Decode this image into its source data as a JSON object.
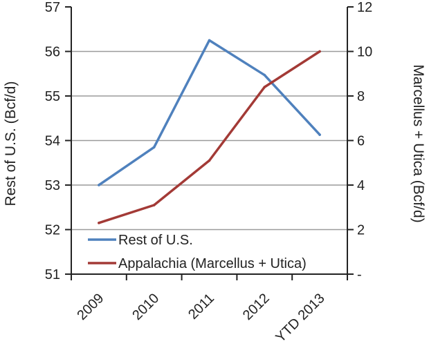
{
  "chart_data": {
    "type": "line",
    "categories": [
      "2009",
      "2010",
      "2011",
      "2012",
      "YTD 2013"
    ],
    "series": [
      {
        "name": "Rest of U.S.",
        "axis": "left",
        "color": "#4f81bd",
        "values": [
          53.0,
          53.85,
          56.25,
          55.47,
          54.13
        ]
      },
      {
        "name": "Appalachia (Marcellus + Utica)",
        "axis": "right",
        "color": "#a33a36",
        "values": [
          2.3,
          3.1,
          5.1,
          8.4,
          10.0
        ]
      }
    ],
    "ylabel": "Rest of U.S. (Bcf/d)",
    "ylabel_right": "Marcellus + Utica (Bcf/d)",
    "ylim": [
      51,
      57
    ],
    "ylim_right": [
      0,
      12
    ],
    "yticks": [
      "51",
      "52",
      "53",
      "54",
      "55",
      "56",
      "57"
    ],
    "yticks_right": [
      "-",
      "2",
      "4",
      "6",
      "8",
      "10",
      "12"
    ],
    "grid": true,
    "legend": "bottom-left",
    "axis_color": "#222222",
    "grid_color": "#9a9a9a"
  }
}
